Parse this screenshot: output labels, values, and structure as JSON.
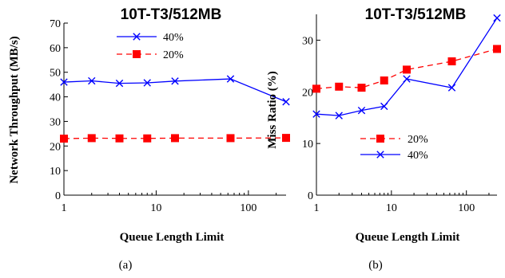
{
  "chart_data": [
    {
      "type": "line",
      "title": "10T-T3/512MB",
      "xlabel": "Queue Length Limit",
      "ylabel": "Network Throughput (MB/s)",
      "caption": "(a)",
      "xscale": "log",
      "xlim": [
        1,
        256
      ],
      "ylim": [
        0,
        70
      ],
      "xticks": [
        1,
        10,
        100
      ],
      "xtick_labels": [
        "1",
        "10",
        "100"
      ],
      "yticks": [
        0,
        10,
        20,
        30,
        40,
        50,
        60,
        70
      ],
      "ytick_labels": [
        "0",
        "10",
        "20",
        "30",
        "40",
        "50",
        "60",
        "70"
      ],
      "grid": false,
      "legend_position": "top-right",
      "legend_order": [
        "40%",
        "20%"
      ],
      "x": [
        1,
        2,
        4,
        8,
        16,
        64,
        256
      ],
      "series": [
        {
          "name": "40%",
          "values": [
            46,
            46.5,
            45.5,
            45.7,
            46.4,
            47.3,
            38
          ],
          "color": "#0000ff",
          "marker": "x",
          "dash": "solid"
        },
        {
          "name": "20%",
          "values": [
            23,
            23.2,
            23.1,
            23.1,
            23.2,
            23.2,
            23.3
          ],
          "color": "#ff0000",
          "marker": "square",
          "dash": "dashed"
        }
      ]
    },
    {
      "type": "line",
      "title": "10T-T3/512MB",
      "xlabel": "Queue Length Limit",
      "ylabel": "Miss Ratio (%)",
      "caption": "(b)",
      "xscale": "log",
      "xlim": [
        1,
        256
      ],
      "ylim": [
        0,
        35
      ],
      "xticks": [
        1,
        10,
        100
      ],
      "xtick_labels": [
        "1",
        "10",
        "100"
      ],
      "yticks": [
        0,
        10,
        20,
        30
      ],
      "ytick_labels": [
        "0",
        "10",
        "20",
        "30"
      ],
      "grid": false,
      "legend_position": "center-left",
      "legend_order": [
        "20%",
        "40%"
      ],
      "x": [
        1,
        2,
        4,
        8,
        16,
        64,
        256
      ],
      "series": [
        {
          "name": "40%",
          "values": [
            15.7,
            15.4,
            16.4,
            17.2,
            22.5,
            20.8,
            34.3
          ],
          "color": "#0000ff",
          "marker": "x",
          "dash": "solid"
        },
        {
          "name": "20%",
          "values": [
            20.6,
            21,
            20.8,
            22.2,
            24.3,
            25.9,
            28.3
          ],
          "color": "#ff0000",
          "marker": "square",
          "dash": "dashed"
        }
      ]
    }
  ]
}
